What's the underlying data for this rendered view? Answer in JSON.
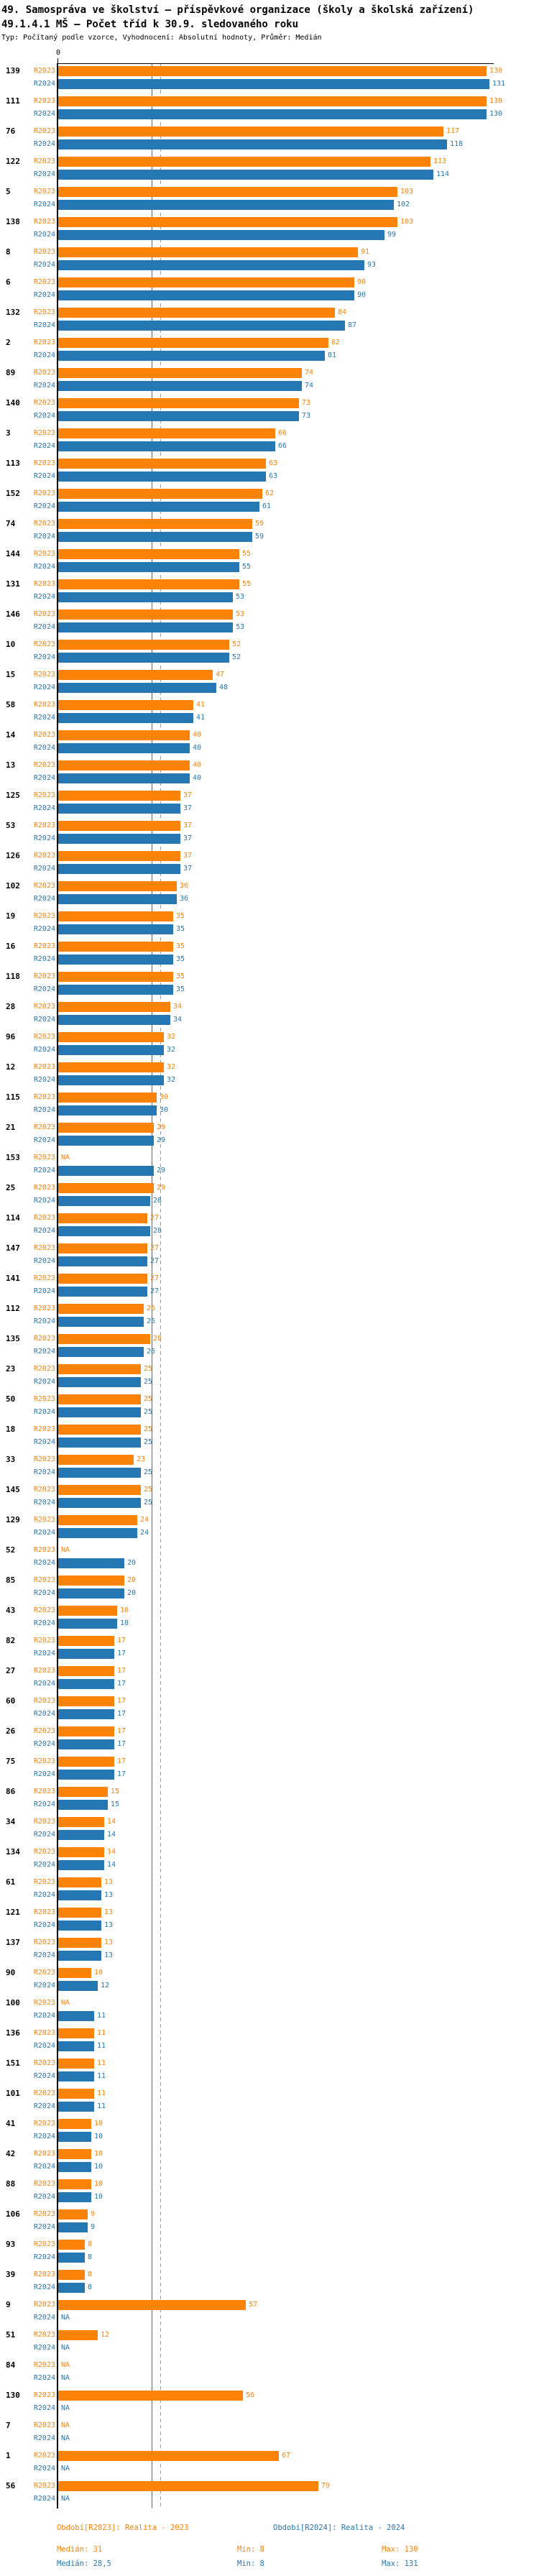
{
  "header": {
    "title_line1": "49. Samospráva ve školství – příspěvkové organizace (školy a školská zařízení)",
    "title_line2": "49.1.4.1 MŠ – Počet tříd k 30.9. sledovaného roku",
    "subtitle": "Typ: Počítaný podle vzorce, Vyhodnocení: Absolutní hodnoty, Průměr: Medián"
  },
  "chart_data": {
    "type": "bar",
    "orientation": "horizontal",
    "title": "49.1.4.1 MŠ – Počet tříd k 30.9. sledovaného roku",
    "axis": {
      "tick0": "0",
      "max": 132,
      "grid": false
    },
    "na_label": "NA",
    "series": [
      {
        "name": "R2023",
        "color": "#fc8208",
        "median": 31
      },
      {
        "name": "R2024",
        "color": "#2577b4",
        "median": 28.5
      }
    ],
    "groups": [
      {
        "category": "139",
        "R2023": 130,
        "R2024": 131
      },
      {
        "category": "111",
        "R2023": 130,
        "R2024": 130
      },
      {
        "category": "76",
        "R2023": 117,
        "R2024": 118
      },
      {
        "category": "122",
        "R2023": 113,
        "R2024": 114
      },
      {
        "category": "5",
        "R2023": 103,
        "R2024": 102
      },
      {
        "category": "138",
        "R2023": 103,
        "R2024": 99
      },
      {
        "category": "8",
        "R2023": 91,
        "R2024": 93
      },
      {
        "category": "6",
        "R2023": 90,
        "R2024": 90
      },
      {
        "category": "132",
        "R2023": 84,
        "R2024": 87
      },
      {
        "category": "2",
        "R2023": 82,
        "R2024": 81
      },
      {
        "category": "89",
        "R2023": 74,
        "R2024": 74
      },
      {
        "category": "140",
        "R2023": 73,
        "R2024": 73
      },
      {
        "category": "3",
        "R2023": 66,
        "R2024": 66
      },
      {
        "category": "113",
        "R2023": 63,
        "R2024": 63
      },
      {
        "category": "152",
        "R2023": 62,
        "R2024": 61
      },
      {
        "category": "74",
        "R2023": 59,
        "R2024": 59
      },
      {
        "category": "144",
        "R2023": 55,
        "R2024": 55
      },
      {
        "category": "131",
        "R2023": 55,
        "R2024": 53
      },
      {
        "category": "146",
        "R2023": 53,
        "R2024": 53
      },
      {
        "category": "10",
        "R2023": 52,
        "R2024": 52
      },
      {
        "category": "15",
        "R2023": 47,
        "R2024": 48
      },
      {
        "category": "58",
        "R2023": 41,
        "R2024": 41
      },
      {
        "category": "14",
        "R2023": 40,
        "R2024": 40
      },
      {
        "category": "13",
        "R2023": 40,
        "R2024": 40
      },
      {
        "category": "125",
        "R2023": 37,
        "R2024": 37
      },
      {
        "category": "53",
        "R2023": 37,
        "R2024": 37
      },
      {
        "category": "126",
        "R2023": 37,
        "R2024": 37
      },
      {
        "category": "102",
        "R2023": 36,
        "R2024": 36
      },
      {
        "category": "19",
        "R2023": 35,
        "R2024": 35
      },
      {
        "category": "16",
        "R2023": 35,
        "R2024": 35
      },
      {
        "category": "118",
        "R2023": 35,
        "R2024": 35
      },
      {
        "category": "28",
        "R2023": 34,
        "R2024": 34
      },
      {
        "category": "96",
        "R2023": 32,
        "R2024": 32
      },
      {
        "category": "12",
        "R2023": 32,
        "R2024": 32
      },
      {
        "category": "115",
        "R2023": 30,
        "R2024": 30
      },
      {
        "category": "21",
        "R2023": 29,
        "R2024": 29
      },
      {
        "category": "153",
        "R2023": null,
        "R2024": 29
      },
      {
        "category": "25",
        "R2023": 29,
        "R2024": 28
      },
      {
        "category": "114",
        "R2023": 27,
        "R2024": 28
      },
      {
        "category": "147",
        "R2023": 27,
        "R2024": 27
      },
      {
        "category": "141",
        "R2023": 27,
        "R2024": 27
      },
      {
        "category": "112",
        "R2023": 26,
        "R2024": 26
      },
      {
        "category": "135",
        "R2023": 28,
        "R2024": 26
      },
      {
        "category": "23",
        "R2023": 25,
        "R2024": 25
      },
      {
        "category": "50",
        "R2023": 25,
        "R2024": 25
      },
      {
        "category": "18",
        "R2023": 25,
        "R2024": 25
      },
      {
        "category": "33",
        "R2023": 23,
        "R2024": 25
      },
      {
        "category": "145",
        "R2023": 25,
        "R2024": 25
      },
      {
        "category": "129",
        "R2023": 24,
        "R2024": 24
      },
      {
        "category": "52",
        "R2023": null,
        "R2024": 20
      },
      {
        "category": "85",
        "R2023": 20,
        "R2024": 20
      },
      {
        "category": "43",
        "R2023": 18,
        "R2024": 18
      },
      {
        "category": "82",
        "R2023": 17,
        "R2024": 17
      },
      {
        "category": "27",
        "R2023": 17,
        "R2024": 17
      },
      {
        "category": "60",
        "R2023": 17,
        "R2024": 17
      },
      {
        "category": "26",
        "R2023": 17,
        "R2024": 17
      },
      {
        "category": "75",
        "R2023": 17,
        "R2024": 17
      },
      {
        "category": "86",
        "R2023": 15,
        "R2024": 15
      },
      {
        "category": "34",
        "R2023": 14,
        "R2024": 14
      },
      {
        "category": "134",
        "R2023": 14,
        "R2024": 14
      },
      {
        "category": "61",
        "R2023": 13,
        "R2024": 13
      },
      {
        "category": "121",
        "R2023": 13,
        "R2024": 13
      },
      {
        "category": "137",
        "R2023": 13,
        "R2024": 13
      },
      {
        "category": "90",
        "R2023": 10,
        "R2024": 12
      },
      {
        "category": "100",
        "R2023": null,
        "R2024": 11
      },
      {
        "category": "136",
        "R2023": 11,
        "R2024": 11
      },
      {
        "category": "151",
        "R2023": 11,
        "R2024": 11
      },
      {
        "category": "101",
        "R2023": 11,
        "R2024": 11
      },
      {
        "category": "41",
        "R2023": 10,
        "R2024": 10
      },
      {
        "category": "42",
        "R2023": 10,
        "R2024": 10
      },
      {
        "category": "88",
        "R2023": 10,
        "R2024": 10
      },
      {
        "category": "106",
        "R2023": 9,
        "R2024": 9
      },
      {
        "category": "93",
        "R2023": 8,
        "R2024": 8
      },
      {
        "category": "39",
        "R2023": 8,
        "R2024": 8
      },
      {
        "category": "9",
        "R2023": 57,
        "R2024": null
      },
      {
        "category": "51",
        "R2023": 12,
        "R2024": null
      },
      {
        "category": "84",
        "R2023": null,
        "R2024": null
      },
      {
        "category": "130",
        "R2023": 56,
        "R2024": null
      },
      {
        "category": "7",
        "R2023": null,
        "R2024": null
      },
      {
        "category": "1",
        "R2023": 67,
        "R2024": null
      },
      {
        "category": "56",
        "R2023": 79,
        "R2024": null
      }
    ]
  },
  "footer": {
    "legend": [
      {
        "series": "R2023",
        "label": "Období[R2023]: Realita - 2023"
      },
      {
        "series": "R2024",
        "label": "Období[R2024]: Realita - 2024"
      }
    ],
    "stats": [
      {
        "series": "R2023",
        "median_label": "Medián: 31",
        "min_label": "Min: 8",
        "max_label": "Max: 130"
      },
      {
        "series": "R2024",
        "median_label": "Medián: 28,5",
        "min_label": "Min: 8",
        "max_label": "Max: 131"
      }
    ]
  }
}
